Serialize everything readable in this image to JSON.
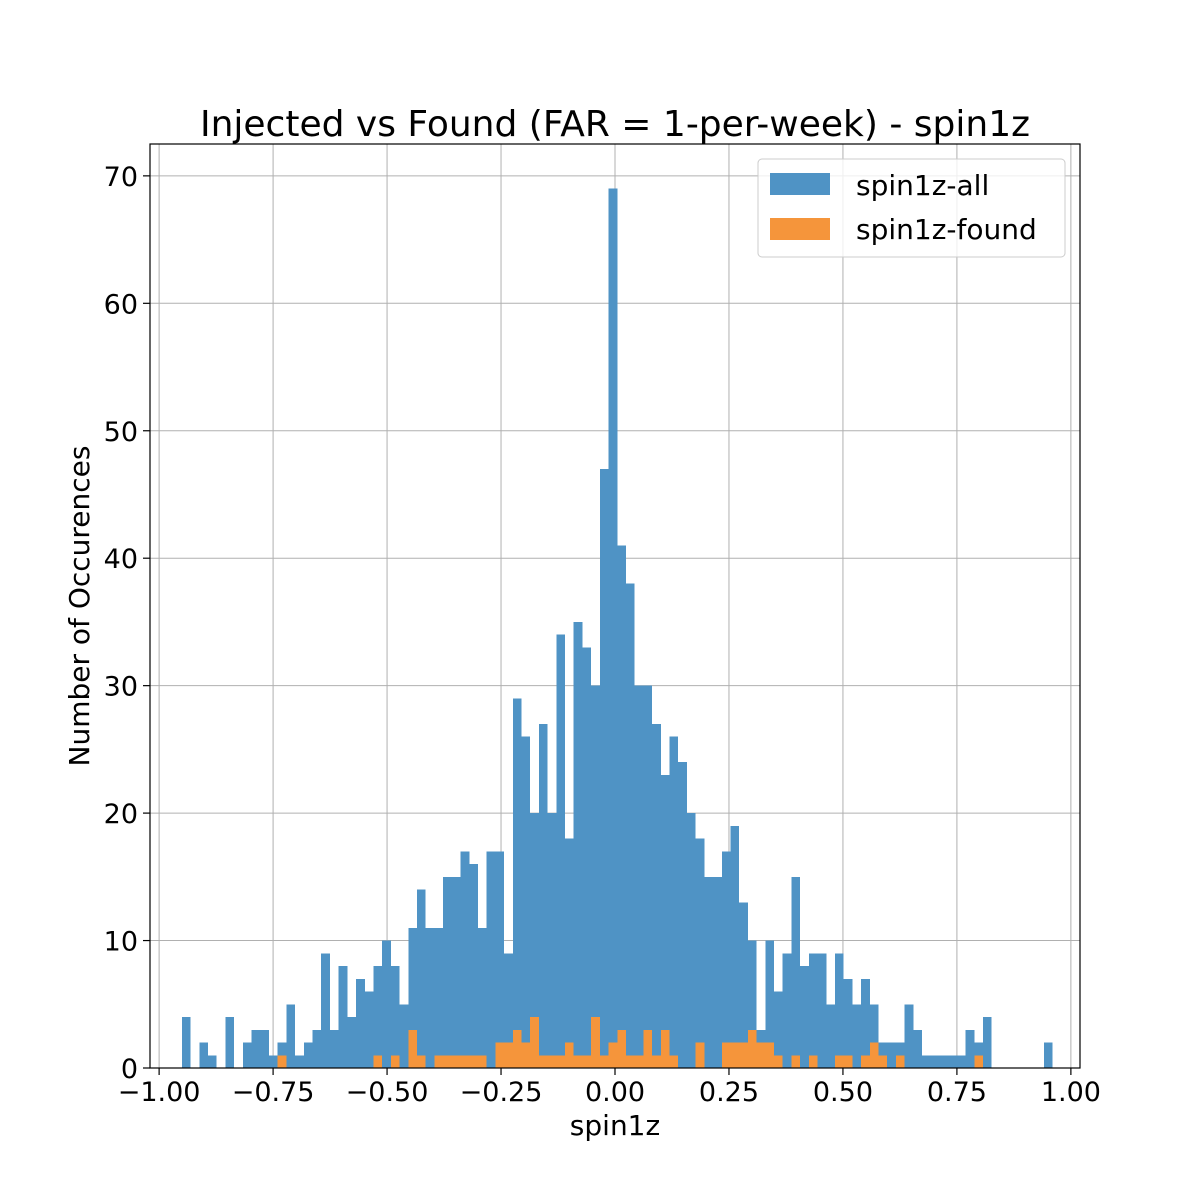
{
  "chart_data": {
    "type": "bar",
    "title": "Injected vs Found (FAR = 1-per-week) - spin1z",
    "xlabel": "spin1z",
    "ylabel": "Number of Occurences",
    "xlim": [
      -1.02,
      1.02
    ],
    "ylim": [
      0,
      72.5
    ],
    "xticks": [
      -1.0,
      -0.75,
      -0.5,
      -0.25,
      0.0,
      0.25,
      0.5,
      0.75,
      1.0
    ],
    "xtick_labels": [
      "−1.00",
      "−0.75",
      "−0.50",
      "−0.25",
      "0.00",
      "0.25",
      "0.50",
      "0.75",
      "1.00"
    ],
    "yticks": [
      0,
      10,
      20,
      30,
      40,
      50,
      60,
      70
    ],
    "ytick_labels": [
      "0",
      "10",
      "20",
      "30",
      "40",
      "50",
      "60",
      "70"
    ],
    "grid": true,
    "legend_position": "top-right",
    "bins": {
      "start": -0.95,
      "width": 0.0191,
      "count": 101
    },
    "series": [
      {
        "name": "spin1z-all",
        "color": "#4f93c5",
        "values": [
          4,
          0,
          2,
          1,
          0,
          4,
          0,
          2,
          3,
          3,
          1,
          2,
          5,
          1,
          2,
          3,
          9,
          3,
          8,
          4,
          7,
          6,
          8,
          10,
          8,
          5,
          11,
          14,
          11,
          11,
          15,
          15,
          17,
          16,
          11,
          17,
          17,
          9,
          29,
          26,
          20,
          27,
          20,
          34,
          18,
          35,
          33,
          30,
          47,
          69,
          41,
          38,
          30,
          30,
          27,
          23,
          26,
          24,
          20,
          18,
          15,
          15,
          17,
          19,
          13,
          10,
          3,
          10,
          6,
          9,
          15,
          8,
          9,
          9,
          5,
          9,
          7,
          5,
          7,
          5,
          2,
          2,
          2,
          5,
          3,
          1,
          1,
          1,
          1,
          1,
          3,
          2,
          4,
          0,
          0,
          0,
          0,
          0,
          0,
          2,
          0
        ]
      },
      {
        "name": "spin1z-found",
        "color": "#f5953b",
        "values": [
          0,
          0,
          0,
          0,
          0,
          0,
          0,
          0,
          0,
          0,
          0,
          1,
          0,
          0,
          0,
          0,
          0,
          0,
          0,
          0,
          0,
          0,
          1,
          0,
          1,
          0,
          3,
          1,
          0,
          1,
          1,
          1,
          1,
          1,
          1,
          0,
          2,
          2,
          3,
          2,
          4,
          1,
          1,
          1,
          2,
          1,
          1,
          4,
          1,
          2,
          3,
          1,
          1,
          3,
          1,
          3,
          1,
          0,
          0,
          2,
          0,
          0,
          2,
          2,
          2,
          3,
          2,
          2,
          1,
          0,
          1,
          0,
          1,
          0,
          0,
          1,
          1,
          0,
          1,
          2,
          1,
          0,
          1,
          0,
          0,
          0,
          0,
          0,
          0,
          0,
          0,
          1,
          0,
          0,
          0,
          0,
          0,
          0,
          0,
          0,
          0
        ]
      }
    ]
  }
}
